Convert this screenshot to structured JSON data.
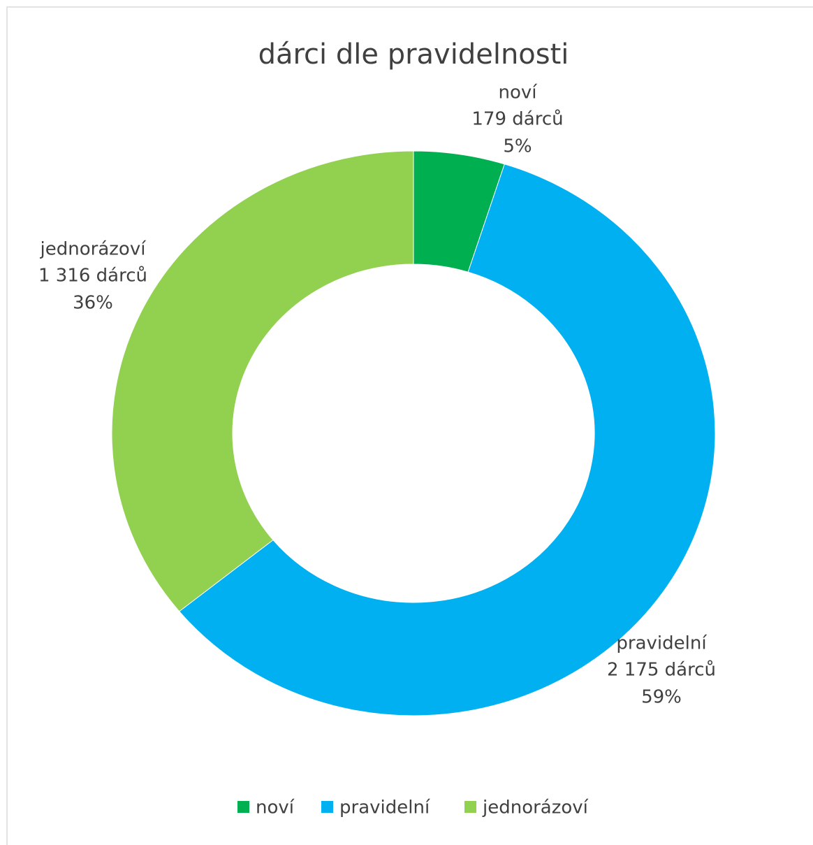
{
  "chart_data": {
    "type": "donut",
    "title": "dárci dle pravidelnosti",
    "categories": [
      "noví",
      "pravidelní",
      "jednorázoví"
    ],
    "values": [
      179,
      2175,
      1316
    ],
    "value_labels": [
      "179 dárců",
      "2 175 dárců",
      "1 316 dárců"
    ],
    "percent_labels": [
      "5%",
      "59%",
      "36%"
    ],
    "colors": [
      "#00b050",
      "#00b0f0",
      "#92d050"
    ],
    "legend": "bottom"
  }
}
